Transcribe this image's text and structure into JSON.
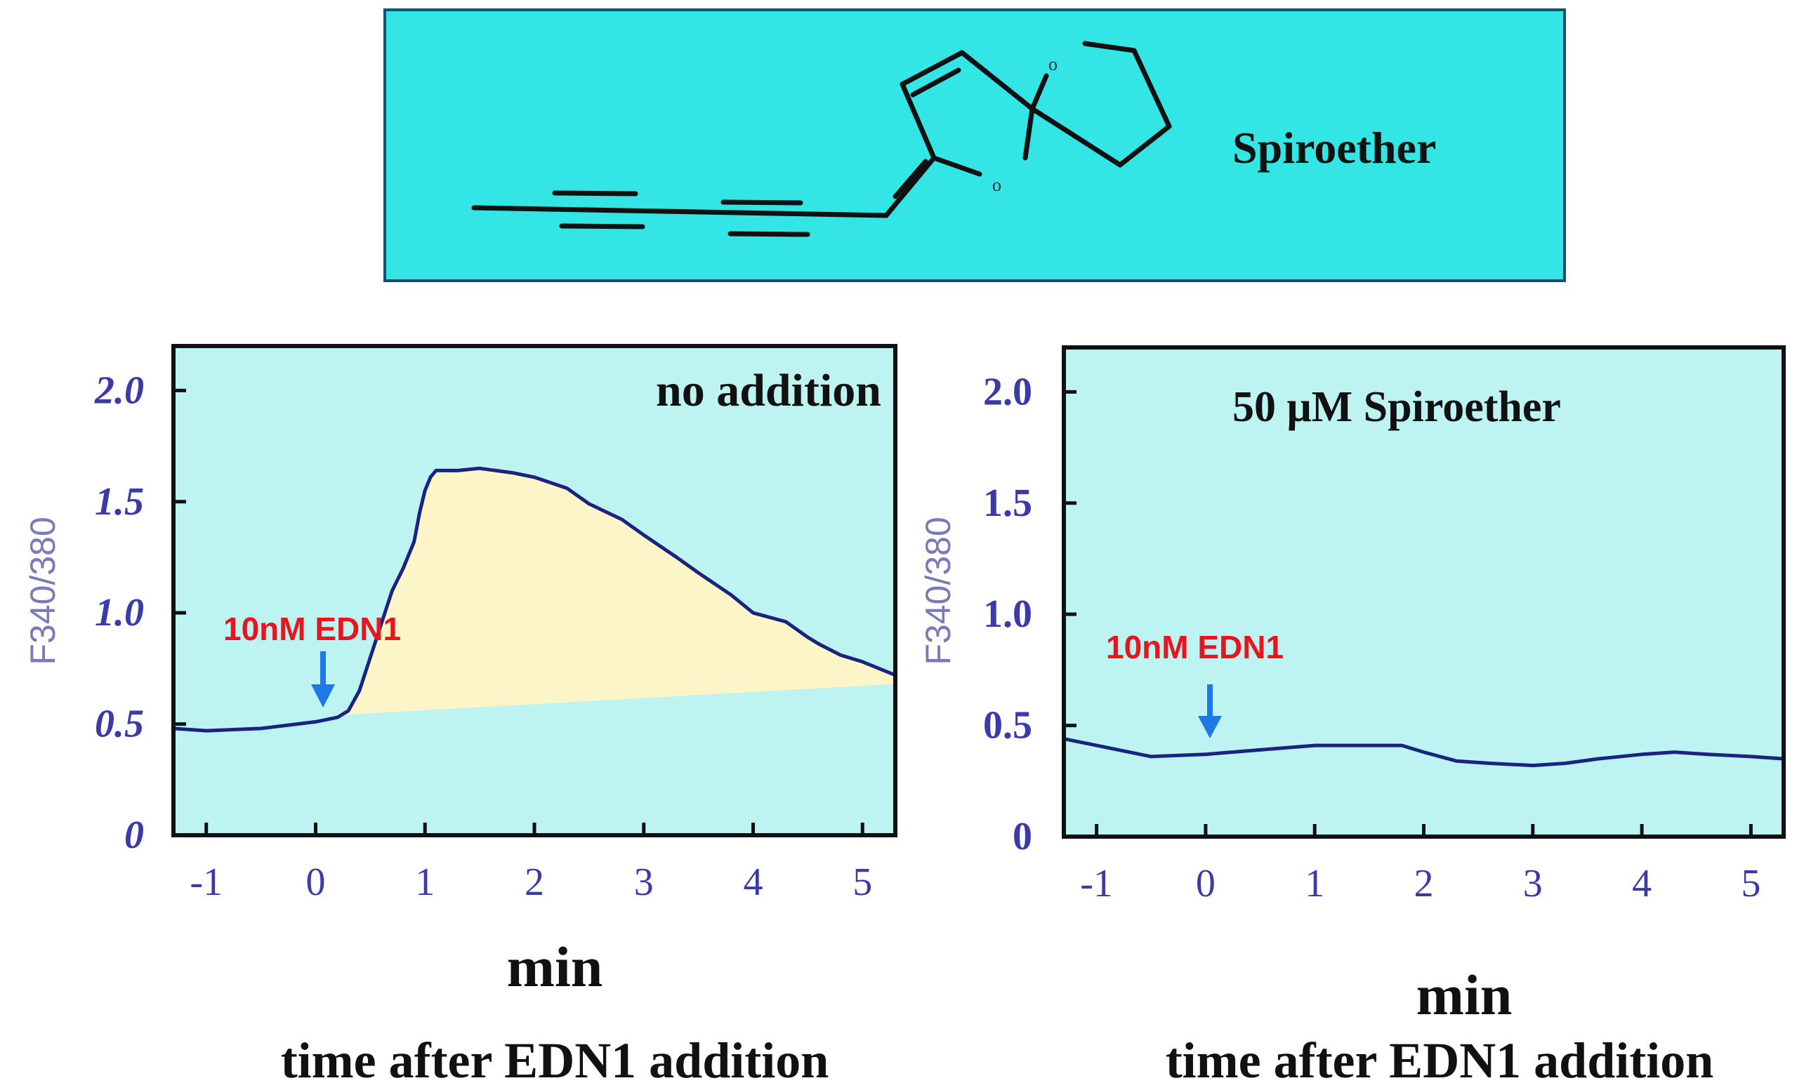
{
  "structure_panel": {
    "label": "Spiroether",
    "background": "#33E5E5",
    "atom_symbol": "o"
  },
  "colors": {
    "plot_bg": "#BDF4F2",
    "fill_area": "#FCF5C8",
    "line": "#1A237E",
    "tick_text": "#3A3AA8",
    "ylabel_text": "#7A7AB8",
    "annotation_text": "#E8141E",
    "arrow": "#1E78E6"
  },
  "chart_data": [
    {
      "type": "line",
      "title": "no addition",
      "ylabel": "F340/380",
      "xlabel": "min",
      "xlabel2": "time after EDN1 addition",
      "xlim": [
        -1.3,
        5.3
      ],
      "ylim": [
        0,
        2.2
      ],
      "xticks": [
        -1,
        0,
        1,
        2,
        3,
        4,
        5
      ],
      "yticks": [
        0,
        0.5,
        1.0,
        1.5,
        2.0
      ],
      "ytick_labels": [
        "0",
        "0.5",
        "1.0",
        "1.5",
        "2.0"
      ],
      "annotation": {
        "text": "10nM EDN1",
        "x": 0
      },
      "fill_baseline": [
        [
          0.2,
          0.54
        ],
        [
          5.3,
          0.68
        ]
      ],
      "series": [
        {
          "x": [
            -1.3,
            -1.0,
            -0.5,
            0.0,
            0.2,
            0.3,
            0.4,
            0.5,
            0.6,
            0.7,
            0.75,
            0.8,
            0.9,
            0.95,
            1.0,
            1.05,
            1.1,
            1.3,
            1.5,
            1.8,
            2.0,
            2.3,
            2.5,
            2.8,
            3.0,
            3.3,
            3.5,
            3.8,
            4.0,
            4.3,
            4.5,
            4.6,
            4.8,
            5.0,
            5.3
          ],
          "y": [
            0.48,
            0.47,
            0.48,
            0.51,
            0.53,
            0.56,
            0.65,
            0.8,
            0.95,
            1.1,
            1.15,
            1.2,
            1.32,
            1.45,
            1.55,
            1.61,
            1.64,
            1.64,
            1.65,
            1.63,
            1.61,
            1.56,
            1.49,
            1.42,
            1.35,
            1.25,
            1.18,
            1.08,
            1.0,
            0.96,
            0.89,
            0.86,
            0.81,
            0.78,
            0.72
          ]
        }
      ]
    },
    {
      "type": "line",
      "title": "50 μM Spiroether",
      "ylabel": "F340/380",
      "xlabel": "min",
      "xlabel2": "time after EDN1 addition",
      "xlim": [
        -1.3,
        5.3
      ],
      "ylim": [
        0,
        2.2
      ],
      "xticks": [
        -1,
        0,
        1,
        2,
        3,
        4,
        5
      ],
      "yticks": [
        0,
        0.5,
        1.0,
        1.5,
        2.0
      ],
      "ytick_labels": [
        "0",
        "0.5",
        "1.0",
        "1.5",
        "2.0"
      ],
      "annotation": {
        "text": "10nM EDN1",
        "x": 0
      },
      "series": [
        {
          "x": [
            -1.3,
            -1.0,
            -0.5,
            0.0,
            0.5,
            1.0,
            1.5,
            1.8,
            2.0,
            2.3,
            2.6,
            3.0,
            3.3,
            3.6,
            4.0,
            4.3,
            4.6,
            5.0,
            5.3
          ],
          "y": [
            0.44,
            0.41,
            0.36,
            0.37,
            0.39,
            0.41,
            0.41,
            0.41,
            0.38,
            0.34,
            0.33,
            0.32,
            0.33,
            0.35,
            0.37,
            0.38,
            0.37,
            0.36,
            0.35
          ]
        }
      ]
    }
  ]
}
